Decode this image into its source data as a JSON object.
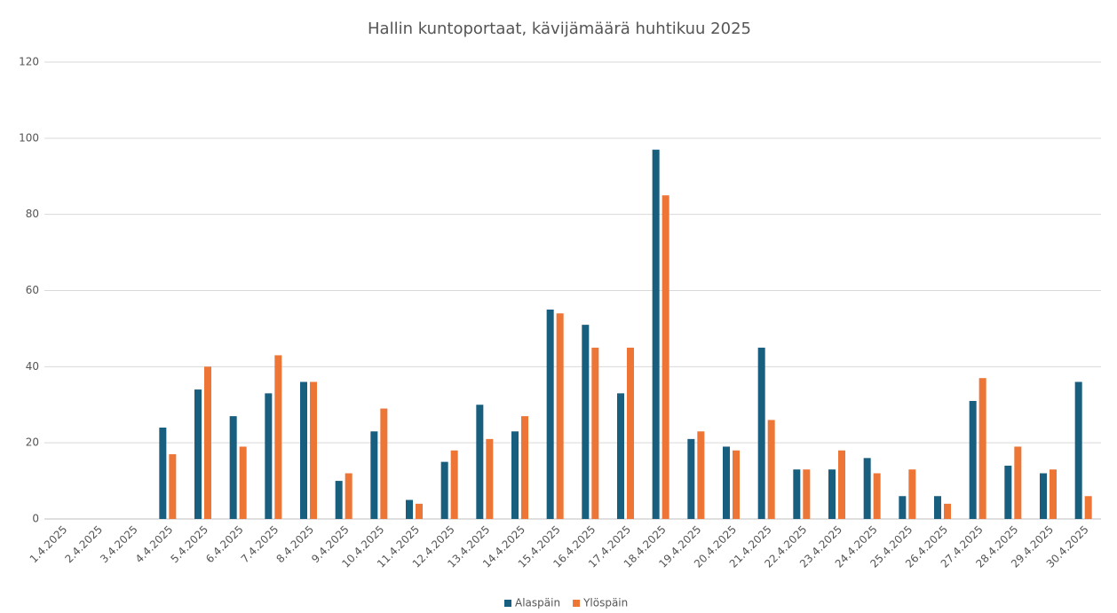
{
  "chart_data": {
    "type": "bar",
    "title": "Hallin kuntoportaat, kävijämäärä huhtikuu 2025",
    "categories": [
      "1.4.2025",
      "2.4.2025",
      "3.4.2025",
      "4.4.2025",
      "5.4.2025",
      "6.4.2025",
      "7.4.2025",
      "8.4.2025",
      "9.4.2025",
      "10.4.2025",
      "11.4.2025",
      "12.4.2025",
      "13.4.2025",
      "14.4.2025",
      "15.4.2025",
      "16.4.2025",
      "17.4.2025",
      "18.4.2025",
      "19.4.2025",
      "20.4.2025",
      "21.4.2025",
      "22.4.2025",
      "23.4.2025",
      "24.4.2025",
      "25.4.2025",
      "26.4.2025",
      "27.4.2025",
      "28.4.2025",
      "29.4.2025",
      "30.4.2025"
    ],
    "series": [
      {
        "name": "Alaspäin",
        "color": "#175e7f",
        "values": [
          null,
          null,
          null,
          24,
          34,
          27,
          33,
          36,
          10,
          23,
          5,
          15,
          30,
          23,
          55,
          51,
          33,
          97,
          21,
          19,
          45,
          13,
          13,
          16,
          6,
          6,
          31,
          14,
          12,
          36
        ]
      },
      {
        "name": "Ylöspäin",
        "color": "#ed7536",
        "values": [
          null,
          null,
          null,
          17,
          40,
          19,
          43,
          36,
          12,
          29,
          4,
          18,
          21,
          27,
          54,
          45,
          45,
          85,
          23,
          18,
          26,
          13,
          18,
          12,
          13,
          4,
          37,
          19,
          13,
          6
        ]
      }
    ],
    "ylim": [
      0,
      120
    ],
    "yticks": [
      0,
      20,
      40,
      60,
      80,
      100,
      120
    ],
    "grid": true,
    "legend": "bottom"
  }
}
